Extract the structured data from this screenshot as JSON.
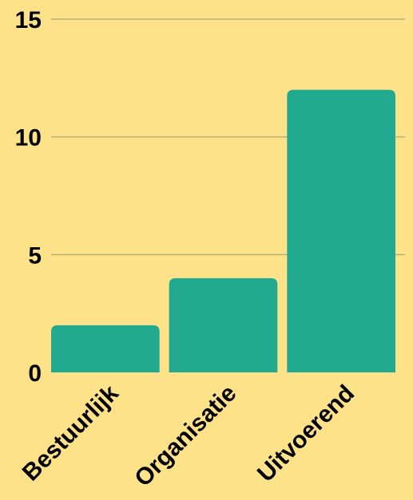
{
  "colors": {
    "background": "#FDE28A",
    "bar": "#22AA90",
    "gridline": "#B8B07A",
    "text": "#000000"
  },
  "chart_data": {
    "type": "bar",
    "title": "",
    "xlabel": "",
    "ylabel": "",
    "categories": [
      "Bestuurlijk",
      "Organisatie",
      "Uitvoerend"
    ],
    "values": [
      2,
      4,
      12
    ],
    "ylim": [
      0,
      15
    ],
    "yticks": [
      0,
      5,
      10,
      15
    ],
    "grid": true,
    "legend": "none"
  }
}
